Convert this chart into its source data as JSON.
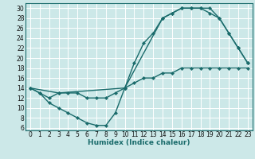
{
  "xlabel": "Humidex (Indice chaleur)",
  "bg_color": "#cce8e8",
  "grid_color": "#ffffff",
  "line_color": "#1a6b6b",
  "xlim": [
    -0.5,
    23.5
  ],
  "ylim": [
    5.5,
    31
  ],
  "xticks": [
    0,
    1,
    2,
    3,
    4,
    5,
    6,
    7,
    8,
    9,
    10,
    11,
    12,
    13,
    14,
    15,
    16,
    17,
    18,
    19,
    20,
    21,
    22,
    23
  ],
  "yticks": [
    6,
    8,
    10,
    12,
    14,
    16,
    18,
    20,
    22,
    24,
    26,
    28,
    30
  ],
  "curve1_x": [
    0,
    1,
    2,
    3,
    4,
    5,
    6,
    7,
    8,
    9,
    10,
    11,
    12,
    13,
    14,
    15,
    16,
    17,
    18,
    19,
    20,
    21,
    22,
    23
  ],
  "curve1_y": [
    14,
    13,
    11,
    10,
    9,
    8,
    7,
    6.5,
    6.5,
    9,
    14,
    19,
    23,
    25,
    28,
    29,
    30,
    30,
    30,
    30,
    28,
    25,
    22,
    19
  ],
  "curve2_x": [
    0,
    1,
    2,
    3,
    4,
    5,
    6,
    7,
    8,
    9,
    10,
    11,
    12,
    13,
    14,
    15,
    16,
    17,
    18,
    19,
    20,
    21,
    22,
    23
  ],
  "curve2_y": [
    14,
    13,
    12,
    13,
    13,
    13,
    12,
    12,
    12,
    13,
    14,
    15,
    16,
    16,
    17,
    17,
    18,
    18,
    18,
    18,
    18,
    18,
    18,
    18
  ],
  "curve3_x": [
    0,
    3,
    10,
    14,
    15,
    16,
    17,
    18,
    19,
    20,
    21,
    22,
    23
  ],
  "curve3_y": [
    14,
    13,
    14,
    28,
    29,
    30,
    30,
    30,
    29,
    28,
    25,
    22,
    19
  ],
  "marker": "D",
  "markersize": 2.2,
  "linewidth": 1.0,
  "tick_fontsize": 5.5,
  "xlabel_fontsize": 6.5
}
